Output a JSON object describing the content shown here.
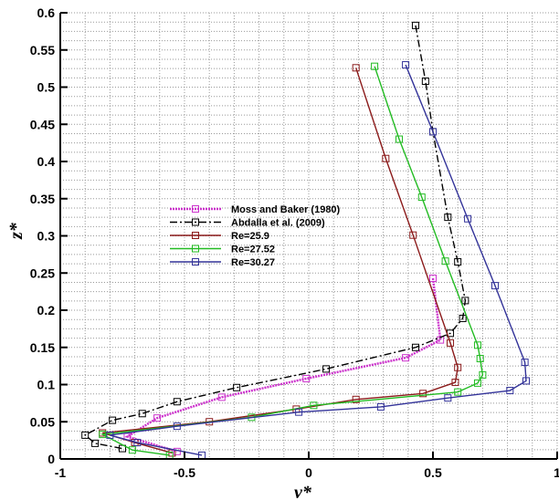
{
  "chart_data": {
    "type": "line",
    "title": "",
    "xlabel": "v*",
    "ylabel": "z*",
    "xlim": [
      -1,
      1
    ],
    "ylim": [
      0,
      0.6
    ],
    "xticks": [
      "-1",
      "-0.5",
      "0",
      "0.5",
      "1"
    ],
    "yticks": [
      "0",
      "0.05",
      "0.1",
      "0.15",
      "0.2",
      "0.25",
      "0.3",
      "0.35",
      "0.4",
      "0.45",
      "0.5",
      "0.55",
      "0.6"
    ],
    "grid": true,
    "legend_position": "center-left",
    "series": [
      {
        "name": "Moss and Baker (1980)",
        "color": "#cc33cc",
        "dash": "dotted-thick",
        "points": [
          [
            0.5,
            0.243
          ],
          [
            0.53,
            0.16
          ],
          [
            0.39,
            0.136
          ],
          [
            -0.01,
            0.108
          ],
          [
            -0.35,
            0.083
          ],
          [
            -0.61,
            0.055
          ],
          [
            -0.73,
            0.03
          ],
          [
            -0.53,
            0.01
          ]
        ]
      },
      {
        "name": "Abdalla et al. (2009)",
        "color": "#000000",
        "dash": "dashdot",
        "points": [
          [
            0.43,
            0.583
          ],
          [
            0.47,
            0.508
          ],
          [
            0.5,
            0.44
          ],
          [
            0.56,
            0.325
          ],
          [
            0.6,
            0.265
          ],
          [
            0.63,
            0.213
          ],
          [
            0.62,
            0.189
          ],
          [
            0.57,
            0.169
          ],
          [
            0.43,
            0.15
          ],
          [
            0.07,
            0.121
          ],
          [
            -0.29,
            0.096
          ],
          [
            -0.53,
            0.077
          ],
          [
            -0.67,
            0.061
          ],
          [
            -0.79,
            0.052
          ],
          [
            -0.9,
            0.032
          ],
          [
            -0.86,
            0.021
          ],
          [
            -0.75,
            0.014
          ]
        ]
      },
      {
        "name": "Re=25.9",
        "color": "#8b1a1a",
        "dash": "solid",
        "points": [
          [
            0.19,
            0.526
          ],
          [
            0.31,
            0.404
          ],
          [
            0.42,
            0.301
          ],
          [
            0.57,
            0.156
          ],
          [
            0.6,
            0.123
          ],
          [
            0.59,
            0.103
          ],
          [
            0.46,
            0.088
          ],
          [
            0.19,
            0.08
          ],
          [
            -0.05,
            0.067
          ],
          [
            -0.4,
            0.05
          ],
          [
            -0.83,
            0.035
          ],
          [
            -0.7,
            0.022
          ],
          [
            -0.55,
            0.008
          ]
        ]
      },
      {
        "name": "Re=27.52",
        "color": "#22bb22",
        "dash": "solid",
        "points": [
          [
            0.265,
            0.528
          ],
          [
            0.364,
            0.43
          ],
          [
            0.455,
            0.352
          ],
          [
            0.55,
            0.266
          ],
          [
            0.68,
            0.153
          ],
          [
            0.69,
            0.135
          ],
          [
            0.7,
            0.113
          ],
          [
            0.68,
            0.102
          ],
          [
            0.6,
            0.09
          ],
          [
            0.02,
            0.072
          ],
          [
            -0.23,
            0.056
          ],
          [
            -0.83,
            0.033
          ],
          [
            -0.71,
            0.012
          ],
          [
            -0.56,
            0.005
          ]
        ]
      },
      {
        "name": "Re=30.27",
        "color": "#333399",
        "dash": "solid",
        "points": [
          [
            0.39,
            0.53
          ],
          [
            0.5,
            0.44
          ],
          [
            0.64,
            0.323
          ],
          [
            0.75,
            0.233
          ],
          [
            0.87,
            0.13
          ],
          [
            0.875,
            0.105
          ],
          [
            0.81,
            0.092
          ],
          [
            0.56,
            0.082
          ],
          [
            0.29,
            0.07
          ],
          [
            -0.04,
            0.063
          ],
          [
            -0.53,
            0.044
          ],
          [
            -0.8,
            0.032
          ],
          [
            -0.69,
            0.022
          ],
          [
            -0.43,
            0.005
          ]
        ]
      }
    ]
  }
}
